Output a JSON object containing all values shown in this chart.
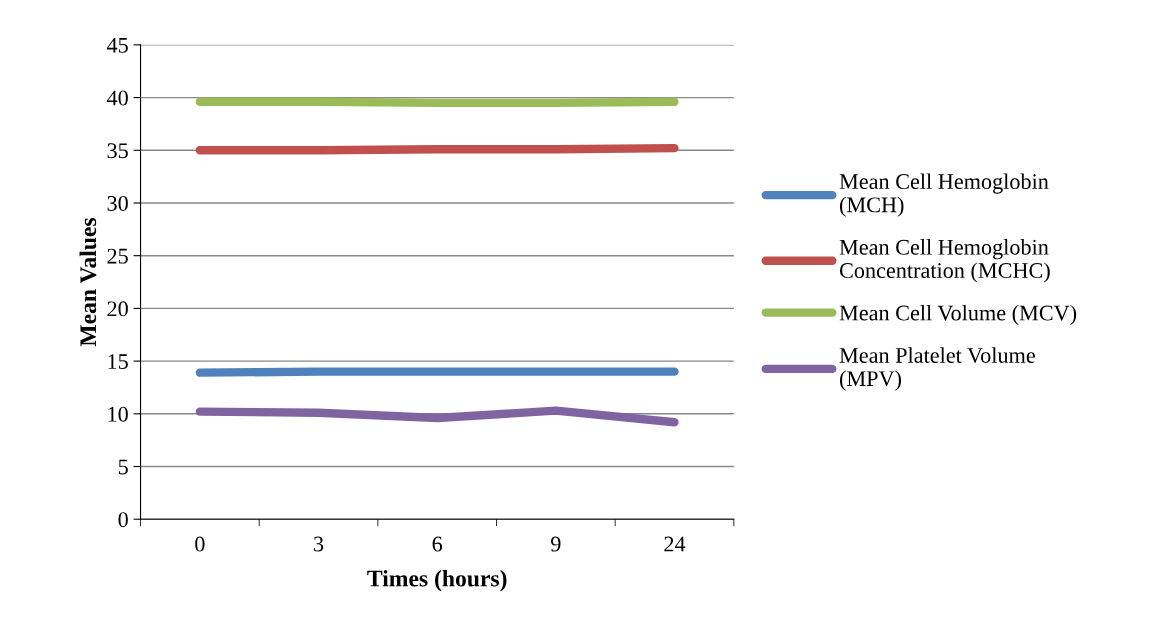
{
  "chart_data": {
    "type": "line",
    "xlabel": "Times (hours)",
    "ylabel": "Mean Values",
    "categories": [
      "0",
      "3",
      "6",
      "9",
      "24"
    ],
    "ylim": [
      0,
      45
    ],
    "yticks": [
      0,
      5,
      10,
      15,
      20,
      25,
      30,
      35,
      40,
      45
    ],
    "grid": "y",
    "legend": "right",
    "marker": "none",
    "line_style": "solid",
    "series": [
      {
        "name": "Mean Cell Hemoglobin (MCH)",
        "color": "#4f81bd",
        "values": [
          13.9,
          14.0,
          14.0,
          14.0,
          14.0
        ]
      },
      {
        "name": "Mean Cell Hemoglobin Concentration (MCHC)",
        "color": "#c0504d",
        "values": [
          35.0,
          35.0,
          35.1,
          35.1,
          35.2
        ]
      },
      {
        "name": "Mean Cell Volume (MCV)",
        "color": "#9bbb59",
        "values": [
          39.6,
          39.6,
          39.5,
          39.5,
          39.6
        ]
      },
      {
        "name": "Mean Platelet Volume (MPV)",
        "color": "#8064a2",
        "values": [
          10.2,
          10.1,
          9.6,
          10.3,
          9.2
        ]
      }
    ]
  }
}
